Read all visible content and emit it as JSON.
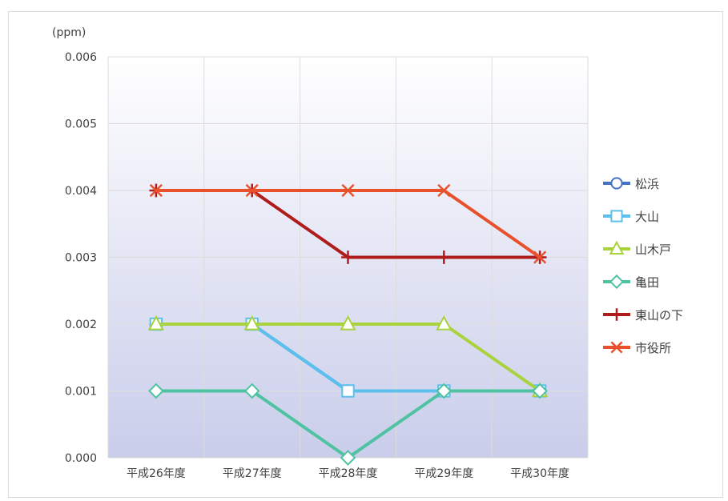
{
  "chart_data": {
    "type": "line",
    "title": "",
    "unit_label": "(ppm)",
    "xlabel": "",
    "ylabel": "(ppm)",
    "categories": [
      "平成26年度",
      "平成27年度",
      "平成28年度",
      "平成29年度",
      "平成30年度"
    ],
    "ylim": [
      0,
      0.006
    ],
    "yticks": [
      "0.000",
      "0.001",
      "0.002",
      "0.003",
      "0.004",
      "0.005",
      "0.006"
    ],
    "grid": true,
    "legend_position": "right",
    "series": [
      {
        "name": "松浜",
        "values": [
          0.002,
          0.002,
          0.001,
          0.001,
          0.001
        ],
        "color": "#4472c4",
        "marker": "circle"
      },
      {
        "name": "大山",
        "values": [
          0.002,
          0.002,
          0.001,
          0.001,
          0.001
        ],
        "color": "#5bc0eb",
        "marker": "square"
      },
      {
        "name": "山木戸",
        "values": [
          0.002,
          0.002,
          0.002,
          0.002,
          0.001
        ],
        "color": "#a9d23c",
        "marker": "triangle"
      },
      {
        "name": "亀田",
        "values": [
          0.001,
          0.001,
          0.0,
          0.001,
          0.001
        ],
        "color": "#4fc3a1",
        "marker": "diamond"
      },
      {
        "name": "東山の下",
        "values": [
          0.004,
          0.004,
          0.003,
          0.003,
          0.003
        ],
        "color": "#b01c1c",
        "marker": "plus"
      },
      {
        "name": "市役所",
        "values": [
          0.004,
          0.004,
          0.004,
          0.004,
          0.003
        ],
        "color": "#e8512b",
        "marker": "cross"
      }
    ]
  }
}
